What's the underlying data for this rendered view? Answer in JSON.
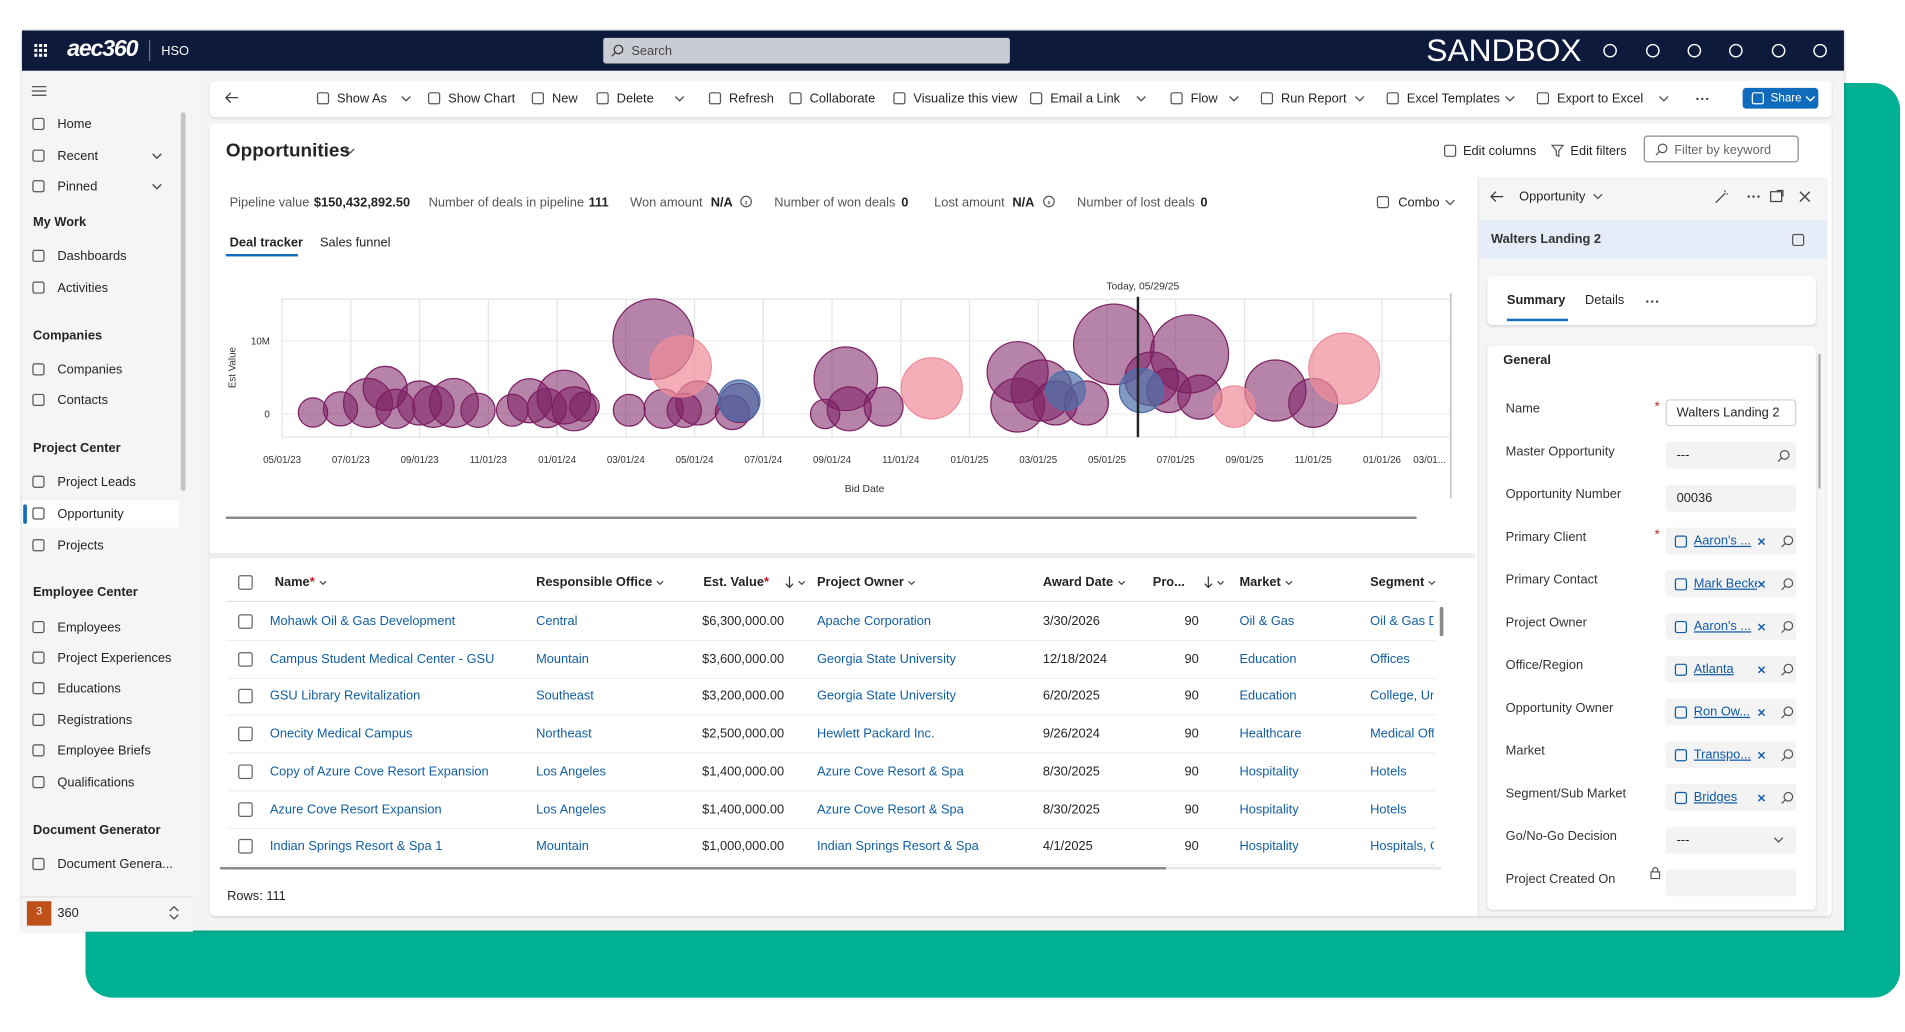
{
  "top_bar": {
    "brand": "aec360",
    "org": "HSO",
    "search": "Search",
    "environment": "SANDBOX"
  },
  "nav": {
    "groups": [
      {
        "items": [
          "Home",
          "Recent",
          "Pinned"
        ]
      },
      {
        "title": "My Work",
        "items": [
          "Dashboards",
          "Activities"
        ]
      },
      {
        "title": "Companies",
        "items": [
          "Companies",
          "Contacts"
        ]
      },
      {
        "title": "Project Center",
        "items": [
          "Project Leads",
          "Opportunity",
          "Projects"
        ],
        "selected": 1
      },
      {
        "title": "Employee Center",
        "items": [
          "Employees",
          "Project Experiences",
          "Educations",
          "Registrations",
          "Employee Briefs",
          "Qualifications"
        ]
      },
      {
        "title": "Document Generator",
        "items": [
          "Document Genera..."
        ]
      }
    ],
    "footer": {
      "badge": "3",
      "label": "360"
    }
  },
  "toolbar": {
    "items": [
      "Show As",
      "Show Chart",
      "New",
      "Delete",
      "Refresh",
      "Collaborate",
      "Visualize this view",
      "Email a Link",
      "Flow",
      "Run Report",
      "Excel Templates",
      "Export to Excel"
    ],
    "share": "Share"
  },
  "view": {
    "title": "Opportunities",
    "edit_columns": "Edit columns",
    "edit_filters": "Edit filters",
    "filter_placeholder": "Filter by keyword",
    "combo": "Combo",
    "summary": [
      {
        "label": "Pipeline value",
        "value": "$150,432,892.50"
      },
      {
        "label": "Number of deals in pipeline",
        "value": "111"
      },
      {
        "label": "Won amount",
        "value": "N/A"
      },
      {
        "label": "Number of won deals",
        "value": "0"
      },
      {
        "label": "Lost amount",
        "value": "N/A"
      },
      {
        "label": "Number of lost deals",
        "value": "0"
      }
    ],
    "tabs": [
      "Deal tracker",
      "Sales funnel"
    ]
  },
  "deal_chart": {
    "type": "bubble",
    "xlabel": "Bid Date",
    "ylabel": "Est Value",
    "today": {
      "label": "Today, 05/29/25",
      "x": 24.9
    },
    "xlim": [
      0,
      34
    ],
    "xticks": [
      {
        "value": 0,
        "label": "05/01/23"
      },
      {
        "value": 2,
        "label": "07/01/23"
      },
      {
        "value": 4,
        "label": "09/01/23"
      },
      {
        "value": 6,
        "label": "11/01/23"
      },
      {
        "value": 8,
        "label": "01/01/24"
      },
      {
        "value": 10,
        "label": "03/01/24"
      },
      {
        "value": 12,
        "label": "05/01/24"
      },
      {
        "value": 14,
        "label": "07/01/24"
      },
      {
        "value": 16,
        "label": "09/01/24"
      },
      {
        "value": 18,
        "label": "11/01/24"
      },
      {
        "value": 20,
        "label": "01/01/25"
      },
      {
        "value": 22,
        "label": "03/01/25"
      },
      {
        "value": 24,
        "label": "05/01/25"
      },
      {
        "value": 26,
        "label": "07/01/25"
      },
      {
        "value": 28,
        "label": "09/01/25"
      },
      {
        "value": 30,
        "label": "11/01/25"
      },
      {
        "value": 32,
        "label": "01/01/26"
      },
      {
        "value": 34,
        "label": "03/01..."
      }
    ],
    "ylim": [
      -3170000,
      15670000
    ],
    "yticks": [
      {
        "value": 0,
        "label": "0"
      },
      {
        "value": 10000000,
        "label": "10M"
      }
    ],
    "grid": true,
    "series": [
      {
        "color": "#7b1f62",
        "x": [
          0.9,
          1.7,
          2.5,
          3.0,
          3.3,
          4.0,
          4.4,
          5.0,
          5.7,
          6.7,
          7.2,
          7.7,
          8.2,
          8.5,
          8.8,
          10.1,
          10.8,
          11.1,
          11.7,
          12.1,
          13.1,
          13.3,
          15.8,
          16.4,
          16.5,
          17.5,
          21.4,
          21.4,
          22.1,
          22.5,
          23.4,
          24.2,
          25.3,
          25.8,
          26.4,
          26.7,
          28.9,
          30.0
        ],
        "y": [
          200000,
          700000,
          1500000,
          3500000,
          700000,
          1500000,
          1000000,
          1500000,
          500000,
          500000,
          1800000,
          800000,
          2300000,
          700000,
          1000000,
          500000,
          10200000,
          700000,
          500000,
          1500000,
          200000,
          1500000,
          0,
          4800000,
          700000,
          1000000,
          5700000,
          1200000,
          3200000,
          1500000,
          1500000,
          9500000,
          4800000,
          3200000,
          8200000,
          2300000,
          3200000,
          1500000
        ],
        "size": [
          12,
          14,
          20,
          18,
          16,
          18,
          17,
          20,
          14,
          13,
          18,
          16,
          22,
          18,
          12,
          13,
          33,
          16,
          14,
          18,
          14,
          16,
          12,
          26,
          18,
          16,
          25,
          22,
          25,
          18,
          18,
          33,
          22,
          18,
          32,
          18,
          25,
          20
        ]
      },
      {
        "color": "#4c6fa8",
        "x": [
          13.3,
          22.8,
          25.0
        ],
        "y": [
          1800000,
          3200000,
          3200000
        ],
        "size": [
          17,
          16,
          18
        ]
      },
      {
        "color": "#f08c98",
        "x": [
          11.6,
          18.9,
          27.7,
          30.9
        ],
        "y": [
          6500000,
          3500000,
          1000000,
          6200000
        ],
        "size": [
          25,
          25,
          17,
          29
        ]
      }
    ]
  },
  "table": {
    "required_mark": "*",
    "columns": [
      {
        "label": "Name",
        "required": true
      },
      {
        "label": "Responsible Office"
      },
      {
        "label": "Est. Value",
        "required": true,
        "sorted": true
      },
      {
        "label": "Project Owner"
      },
      {
        "label": "Award Date"
      },
      {
        "label": "Pro...",
        "sorted": true
      },
      {
        "label": "Market"
      },
      {
        "label": "Segment"
      }
    ],
    "rows": [
      [
        "Mohawk Oil & Gas Development",
        "Central",
        "$6,300,000.00",
        "Apache Corporation",
        "3/30/2026",
        "90",
        "Oil & Gas",
        "Oil & Gas D"
      ],
      [
        "Campus Student Medical Center - GSU",
        "Mountain",
        "$3,600,000.00",
        "Georgia State University",
        "12/18/2024",
        "90",
        "Education",
        "Offices"
      ],
      [
        "GSU Library Revitalization",
        "Southeast",
        "$3,200,000.00",
        "Georgia State University",
        "6/20/2025",
        "90",
        "Education",
        "College, Un"
      ],
      [
        "Onecity Medical Campus",
        "Northeast",
        "$2,500,000.00",
        "Hewlett Packard Inc.",
        "9/26/2024",
        "90",
        "Healthcare",
        "Medical Off"
      ],
      [
        "Copy of Azure Cove Resort Expansion",
        "Los Angeles",
        "$1,400,000.00",
        "Azure Cove Resort & Spa",
        "8/30/2025",
        "90",
        "Hospitality",
        "Hotels"
      ],
      [
        "Azure Cove Resort Expansion",
        "Los Angeles",
        "$1,400,000.00",
        "Azure Cove Resort & Spa",
        "8/30/2025",
        "90",
        "Hospitality",
        "Hotels"
      ],
      [
        "Indian Springs Resort & Spa 1",
        "Mountain",
        "$1,000,000.00",
        "Indian Springs Resort & Spa",
        "4/1/2025",
        "90",
        "Hospitality",
        "Hospitals, C"
      ]
    ],
    "footer": "Rows: 111"
  },
  "panel": {
    "entity": "Opportunity",
    "record": "Walters Landing 2",
    "tabs": [
      "Summary",
      "Details"
    ],
    "section": "General",
    "required_mark": "*",
    "fields": [
      {
        "label": "Name",
        "value": "Walters Landing 2",
        "kind": "text",
        "required": true
      },
      {
        "label": "Master Opportunity",
        "value": "---",
        "kind": "search"
      },
      {
        "label": "Opportunity Number",
        "value": "00036",
        "kind": "text"
      },
      {
        "label": "Primary Client",
        "value": "Aaron's ...",
        "kind": "lookup",
        "required": true
      },
      {
        "label": "Primary Contact",
        "value": "Mark Becke",
        "kind": "lookup"
      },
      {
        "label": "Project Owner",
        "value": "Aaron's ...",
        "kind": "lookup"
      },
      {
        "label": "Office/Region",
        "value": "Atlanta",
        "kind": "lookup"
      },
      {
        "label": "Opportunity Owner",
        "value": "Ron Ow...",
        "kind": "lookup"
      },
      {
        "label": "Market",
        "value": "Transpo...",
        "kind": "lookup"
      },
      {
        "label": "Segment/Sub Market",
        "value": "Bridges",
        "kind": "lookup"
      },
      {
        "label": "Go/No-Go Decision",
        "value": "---",
        "kind": "select"
      },
      {
        "label": "Project Created On",
        "kind": "locked"
      }
    ]
  }
}
